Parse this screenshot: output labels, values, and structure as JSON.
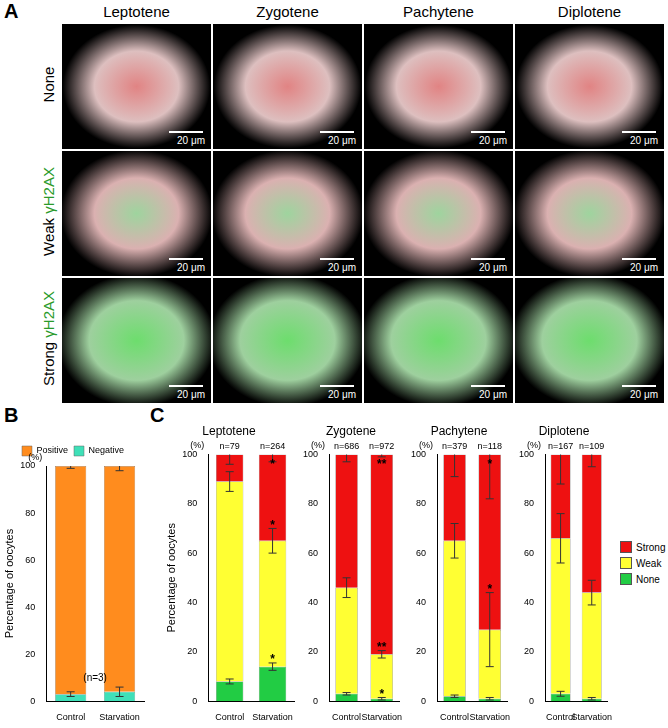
{
  "panel_labels": [
    "A",
    "B",
    "C"
  ],
  "micrographs": {
    "columns": [
      "Leptotene",
      "Zygotene",
      "Pachytene",
      "Diplotene"
    ],
    "rows": [
      {
        "label": "None"
      },
      {
        "label": "Weak",
        "stain": "γH2AX"
      },
      {
        "label": "Strong",
        "stain": "γH2AX"
      }
    ],
    "scale_bar": "20 μm"
  },
  "chart_data": [
    {
      "type": "bar",
      "stacked": true,
      "categories": [
        "Control",
        "Starvation"
      ],
      "series": [
        {
          "name": "Negative",
          "color": "#3fe0b8",
          "values": [
            3,
            4
          ],
          "errors": [
            1,
            2
          ]
        },
        {
          "name": "Positive",
          "color": "#ff8c1e",
          "values": [
            97,
            96
          ],
          "errors": [
            1,
            2
          ]
        }
      ],
      "ylim": [
        0,
        100
      ],
      "yticks": [
        0,
        20,
        40,
        60,
        80,
        100
      ],
      "ylabel": "Percentage of oocytes",
      "y_unit": "(%)",
      "legend": "top",
      "annotations": [
        {
          "text": "(n=3)"
        }
      ]
    },
    {
      "type": "bar",
      "stacked": true,
      "title": "Leptotene",
      "categories": [
        "Control",
        "Starvation"
      ],
      "n_labels": [
        "n=79",
        "n=264"
      ],
      "series": [
        {
          "name": "None",
          "color": "#22cc44",
          "values": [
            8,
            14
          ],
          "errors": [
            1,
            1.5
          ]
        },
        {
          "name": "Weak",
          "color": "#ffff33",
          "values": [
            81,
            51
          ],
          "errors": [
            4,
            5
          ]
        },
        {
          "name": "Strong",
          "color": "#ee1111",
          "values": [
            11,
            35
          ],
          "errors": [
            4,
            3
          ]
        }
      ],
      "ylim": [
        0,
        100
      ],
      "yticks": [
        0,
        20,
        40,
        60,
        80,
        100
      ],
      "ylabel": "Percentage of oocytes",
      "y_unit": "(%)",
      "annotations": [
        {
          "category": "Starvation",
          "series": "None",
          "text": "*"
        },
        {
          "category": "Starvation",
          "series": "Weak",
          "text": "*"
        },
        {
          "category": "Starvation",
          "series": "Strong",
          "text": "*"
        }
      ]
    },
    {
      "type": "bar",
      "stacked": true,
      "title": "Zygotene",
      "categories": [
        "Control",
        "Starvation"
      ],
      "n_labels": [
        "n=686",
        "n=972"
      ],
      "series": [
        {
          "name": "None",
          "color": "#22cc44",
          "values": [
            3,
            1
          ],
          "errors": [
            0.5,
            0.5
          ]
        },
        {
          "name": "Weak",
          "color": "#ffff33",
          "values": [
            43,
            18
          ],
          "errors": [
            4,
            1.5
          ]
        },
        {
          "name": "Strong",
          "color": "#ee1111",
          "values": [
            54,
            81
          ],
          "errors": [
            3,
            1
          ]
        }
      ],
      "ylim": [
        0,
        100
      ],
      "yticks": [
        0,
        20,
        40,
        60,
        80,
        100
      ],
      "y_unit": "(%)",
      "annotations": [
        {
          "category": "Starvation",
          "series": "None",
          "text": "*"
        },
        {
          "category": "Starvation",
          "series": "Weak",
          "text": "**"
        },
        {
          "category": "Starvation",
          "series": "Strong",
          "text": "**"
        }
      ]
    },
    {
      "type": "bar",
      "stacked": true,
      "title": "Pachytene",
      "categories": [
        "Control",
        "Starvation"
      ],
      "n_labels": [
        "n=379",
        "n=118"
      ],
      "series": [
        {
          "name": "None",
          "color": "#22cc44",
          "values": [
            2,
            1
          ],
          "errors": [
            0.5,
            0.5
          ]
        },
        {
          "name": "Weak",
          "color": "#ffff33",
          "values": [
            63,
            28
          ],
          "errors": [
            7,
            15
          ]
        },
        {
          "name": "Strong",
          "color": "#ee1111",
          "values": [
            35,
            71
          ],
          "errors": [
            9,
            18
          ]
        }
      ],
      "ylim": [
        0,
        100
      ],
      "yticks": [
        0,
        20,
        40,
        60,
        80,
        100
      ],
      "y_unit": "(%)",
      "annotations": [
        {
          "category": "Starvation",
          "series": "Weak",
          "text": "*"
        },
        {
          "category": "Starvation",
          "series": "Strong",
          "text": "*"
        }
      ]
    },
    {
      "type": "bar",
      "stacked": true,
      "title": "Diplotene",
      "categories": [
        "Control",
        "Starvation"
      ],
      "n_labels": [
        "n=167",
        "n=109"
      ],
      "series": [
        {
          "name": "None",
          "color": "#22cc44",
          "values": [
            3,
            1
          ],
          "errors": [
            1,
            0.5
          ]
        },
        {
          "name": "Weak",
          "color": "#ffff33",
          "values": [
            63,
            43
          ],
          "errors": [
            10,
            5
          ]
        },
        {
          "name": "Strong",
          "color": "#ee1111",
          "values": [
            34,
            56
          ],
          "errors": [
            12,
            5
          ]
        }
      ],
      "ylim": [
        0,
        100
      ],
      "yticks": [
        0,
        20,
        40,
        60,
        80,
        100
      ],
      "y_unit": "(%)",
      "legend": "right"
    }
  ]
}
